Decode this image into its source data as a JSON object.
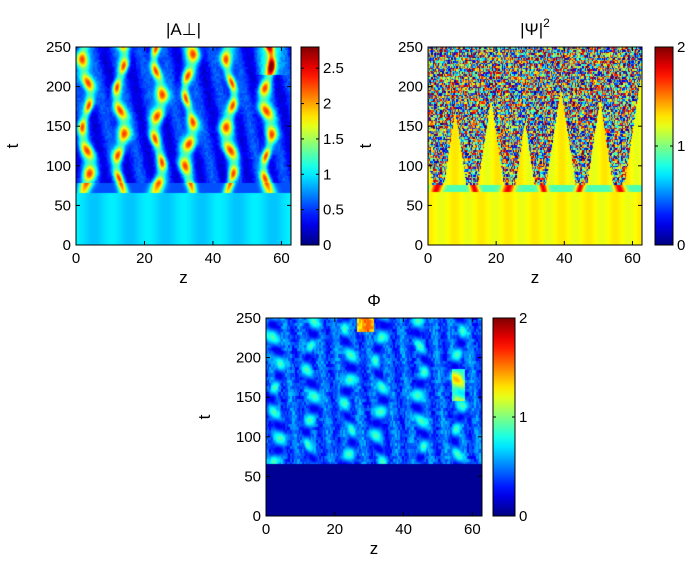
{
  "figure": {
    "description": "Three space-time colormap panels"
  },
  "chart_data": [
    {
      "type": "heatmap",
      "id": "A",
      "title": "|A⊥|",
      "xlabel": "z",
      "ylabel": "t",
      "xlim": [
        0,
        62.8
      ],
      "ylim": [
        0,
        250
      ],
      "xticks": [
        0,
        20,
        40,
        60
      ],
      "yticks": [
        0,
        50,
        100,
        150,
        200,
        250
      ],
      "colorbar": {
        "min": 0,
        "max": 2.8,
        "ticks": [
          0,
          0.5,
          1,
          1.5,
          2,
          2.5
        ],
        "tick_labels": [
          "0",
          "0.5",
          "1",
          "1.5",
          "2",
          "2.5"
        ]
      },
      "colormap": "jet",
      "pattern": {
        "background_level": 0.95,
        "onset_t": 70,
        "filament_z": [
          3,
          13,
          24,
          33,
          45,
          56
        ],
        "filament_peak": 2.2,
        "between_level": 0.35
      }
    },
    {
      "type": "heatmap",
      "id": "Psi",
      "title": "|Ψ|",
      "title_sup": "2",
      "xlabel": "z",
      "ylabel": "t",
      "xlim": [
        0,
        62.8
      ],
      "ylim": [
        0,
        250
      ],
      "xticks": [
        0,
        20,
        40,
        60
      ],
      "yticks": [
        0,
        50,
        100,
        150,
        200,
        250
      ],
      "colorbar": {
        "min": 0,
        "max": 2,
        "ticks": [
          0,
          1,
          2
        ],
        "tick_labels": [
          "0",
          "1",
          "2"
        ]
      },
      "colormap": "jet",
      "pattern": {
        "background_level": 1.25,
        "onset_t": 70,
        "filament_z": [
          3,
          13,
          24,
          33,
          45,
          56
        ],
        "noise": "turbulent"
      }
    },
    {
      "type": "heatmap",
      "id": "Phi",
      "title": "Φ",
      "xlabel": "z",
      "ylabel": "t",
      "xlim": [
        0,
        62.8
      ],
      "ylim": [
        0,
        250
      ],
      "xticks": [
        0,
        20,
        40,
        60
      ],
      "yticks": [
        0,
        50,
        100,
        150,
        200,
        250
      ],
      "colorbar": {
        "min": 0,
        "max": 2,
        "ticks": [
          0,
          1,
          2
        ],
        "tick_labels": [
          "0",
          "1",
          "2"
        ]
      },
      "colormap": "jet",
      "pattern": {
        "background_level": 0.05,
        "onset_t": 70,
        "filament_z": [
          3,
          13,
          24,
          33,
          45,
          56
        ],
        "filament_peak": 0.8,
        "between_level": 0.3
      }
    }
  ]
}
